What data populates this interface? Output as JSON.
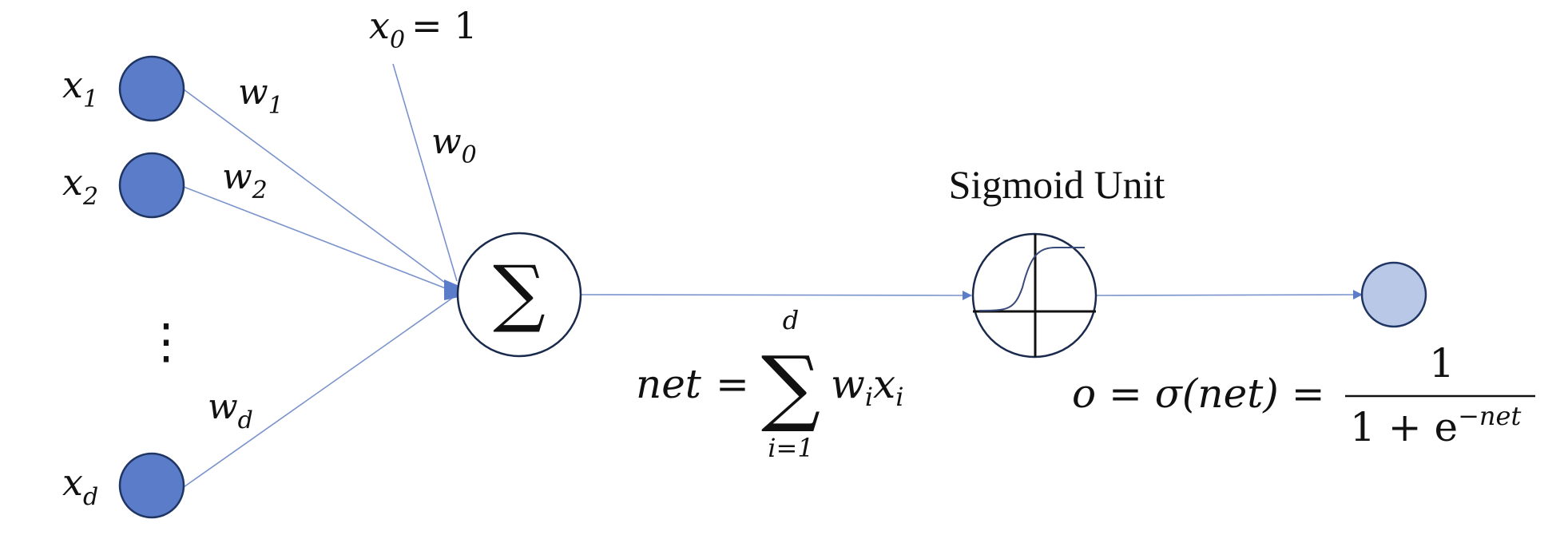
{
  "colors": {
    "input_fill": "#5b7cc9",
    "input_stroke": "#1f3563",
    "line": "#7a93cc",
    "arrow": "#5b7cc9",
    "output_fill": "#b9c8e6",
    "node_stroke": "#1a2a4d"
  },
  "inputs": {
    "x1": {
      "var": "x",
      "sub": "1"
    },
    "x2": {
      "var": "x",
      "sub": "2"
    },
    "xd": {
      "var": "x",
      "sub": "d"
    },
    "ellipsis": "⋮"
  },
  "bias": {
    "var": "x",
    "sub": "0",
    "eq": "= 1"
  },
  "weights": {
    "w1": {
      "var": "w",
      "sub": "1"
    },
    "w2": {
      "var": "w",
      "sub": "2"
    },
    "w0": {
      "var": "w",
      "sub": "0"
    },
    "wd": {
      "var": "w",
      "sub": "d"
    }
  },
  "summation": {
    "symbol": "∑",
    "lhs": "net",
    "eq": "=",
    "big_sum": "∑",
    "upper": "d",
    "lower": "i=1",
    "term_w": "w",
    "term_w_sub": "i",
    "term_x": "x",
    "term_x_sub": "i"
  },
  "sigmoid": {
    "title": "Sigmoid Unit",
    "formula_lhs": "o = σ(net) =",
    "numerator": "1",
    "denom_base": "1 + e",
    "denom_exp": "−net"
  }
}
